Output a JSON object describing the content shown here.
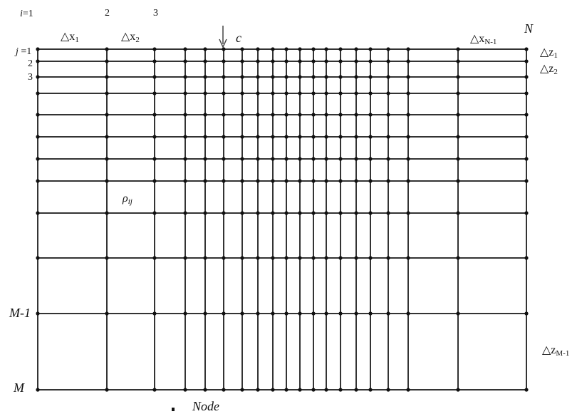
{
  "diagram": {
    "column_labels": {
      "first_prefix": "i",
      "first_eq": "=1",
      "second": "2",
      "third": "3",
      "last": "N"
    },
    "row_labels": {
      "first_prefix": "j",
      "first_eq": " =1",
      "second": "2",
      "third": "3",
      "second_last": "M-1",
      "last": "M"
    },
    "x_spacings": {
      "first": {
        "base": "△x",
        "sub": "1"
      },
      "second": {
        "base": "△x",
        "sub": "2"
      },
      "last": {
        "base": "△x",
        "sub": "N-1"
      }
    },
    "z_spacings": {
      "first": {
        "base": "△z",
        "sub": "1"
      },
      "second": {
        "base": "△z",
        "sub": "2"
      },
      "last": {
        "base": "△z",
        "sub": "M-1"
      }
    },
    "source_label": "c",
    "cell_property": {
      "base": "ρ",
      "sub": "ij"
    },
    "legend": {
      "node_label": "Node"
    }
  }
}
